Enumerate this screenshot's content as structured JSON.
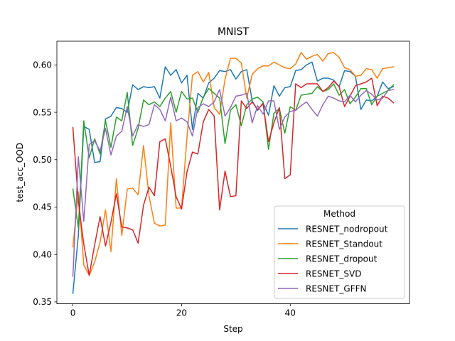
{
  "chart_data": {
    "type": "line",
    "title": "MNIST",
    "xlabel": "Step",
    "ylabel": "test_acc_OOD",
    "xlim": [
      -2.95,
      61.95
    ],
    "ylim": [
      0.348,
      0.625
    ],
    "xticks": [
      0,
      20,
      40
    ],
    "xtick_labels": [
      "0",
      "20",
      "40"
    ],
    "yticks": [
      0.35,
      0.4,
      0.45,
      0.5,
      0.55,
      0.6
    ],
    "ytick_labels": [
      "0.35",
      "0.40",
      "0.45",
      "0.50",
      "0.55",
      "0.60"
    ],
    "grid": false,
    "legend": {
      "title": "Method",
      "placement": "lower-right"
    },
    "series": [
      {
        "name": "RESNET_nodropout",
        "color": "#1f77b4",
        "values": [
          0.359,
          0.42,
          0.535,
          0.532,
          0.497,
          0.498,
          0.543,
          0.546,
          0.555,
          0.554,
          0.55,
          0.579,
          0.574,
          0.577,
          0.576,
          0.577,
          0.565,
          0.598,
          0.589,
          0.595,
          0.581,
          0.589,
          0.532,
          0.57,
          0.565,
          0.581,
          0.586,
          0.594,
          0.593,
          0.595,
          0.585,
          0.593,
          0.595,
          0.562,
          0.552,
          0.56,
          0.547,
          0.578,
          0.567,
          0.576,
          0.577,
          0.594,
          0.595,
          0.6,
          0.603,
          0.583,
          0.586,
          0.586,
          0.584,
          0.577,
          0.594,
          0.593,
          0.588,
          0.553,
          0.563,
          0.562,
          0.567,
          0.582,
          0.575,
          0.577
        ]
      },
      {
        "name": "RESNET_Standout",
        "color": "#ff7f0e",
        "values": [
          0.408,
          0.466,
          0.389,
          0.378,
          0.392,
          0.413,
          0.447,
          0.403,
          0.48,
          0.42,
          0.469,
          0.47,
          0.463,
          0.515,
          0.462,
          0.433,
          0.43,
          0.431,
          0.539,
          0.449,
          0.449,
          0.524,
          0.589,
          0.593,
          0.582,
          0.592,
          0.555,
          0.548,
          0.585,
          0.607,
          0.607,
          0.602,
          0.565,
          0.59,
          0.596,
          0.599,
          0.599,
          0.603,
          0.6,
          0.597,
          0.596,
          0.601,
          0.613,
          0.606,
          0.609,
          0.611,
          0.604,
          0.612,
          0.613,
          0.608,
          0.597,
          0.595,
          0.588,
          0.589,
          0.596,
          0.595,
          0.586,
          0.596,
          0.597,
          0.598
        ]
      },
      {
        "name": "RESNET_dropout",
        "color": "#2ca02c",
        "values": [
          0.469,
          0.428,
          0.541,
          0.502,
          0.522,
          0.506,
          0.541,
          0.513,
          0.545,
          0.541,
          0.571,
          0.515,
          0.533,
          0.563,
          0.558,
          0.561,
          0.556,
          0.565,
          0.572,
          0.55,
          0.572,
          0.564,
          0.565,
          0.55,
          0.566,
          0.575,
          0.57,
          0.565,
          0.517,
          0.552,
          0.558,
          0.536,
          0.558,
          0.564,
          0.566,
          0.561,
          0.511,
          0.549,
          0.554,
          0.528,
          0.556,
          0.552,
          0.568,
          0.569,
          0.57,
          0.577,
          0.572,
          0.574,
          0.58,
          0.568,
          0.574,
          0.559,
          0.566,
          0.575,
          0.575,
          0.558,
          0.567,
          0.57,
          0.573,
          0.579
        ]
      },
      {
        "name": "RESNET_SVD",
        "color": "#d62728",
        "values": [
          0.534,
          0.456,
          0.411,
          0.378,
          0.41,
          0.44,
          0.409,
          0.434,
          0.464,
          0.429,
          0.428,
          0.426,
          0.412,
          0.452,
          0.471,
          0.462,
          0.519,
          0.522,
          0.493,
          0.461,
          0.448,
          0.487,
          0.508,
          0.506,
          0.54,
          0.553,
          0.546,
          0.447,
          0.488,
          0.461,
          0.462,
          0.562,
          0.554,
          0.561,
          0.553,
          0.559,
          0.519,
          0.539,
          0.555,
          0.48,
          0.484,
          0.58,
          0.576,
          0.58,
          0.58,
          0.58,
          0.572,
          0.576,
          0.583,
          0.577,
          0.556,
          0.567,
          0.578,
          0.58,
          0.582,
          0.586,
          0.557,
          0.567,
          0.565,
          0.56
        ]
      },
      {
        "name": "RESNET_GFFN",
        "color": "#9467bd",
        "values": [
          0.377,
          0.503,
          0.435,
          0.516,
          0.52,
          0.509,
          0.533,
          0.505,
          0.525,
          0.53,
          0.556,
          0.525,
          0.537,
          0.535,
          0.537,
          0.558,
          0.553,
          0.541,
          0.566,
          0.541,
          0.544,
          0.54,
          0.525,
          0.555,
          0.559,
          0.556,
          0.561,
          0.574,
          0.546,
          0.555,
          0.567,
          0.568,
          0.57,
          0.539,
          0.557,
          0.548,
          0.562,
          0.562,
          0.532,
          0.545,
          0.551,
          0.552,
          0.557,
          0.561,
          0.553,
          0.546,
          0.558,
          0.567,
          0.565,
          0.562,
          0.561,
          0.568,
          0.561,
          0.568,
          0.573,
          0.569,
          0.563,
          0.565,
          0.573,
          0.574
        ]
      }
    ]
  }
}
